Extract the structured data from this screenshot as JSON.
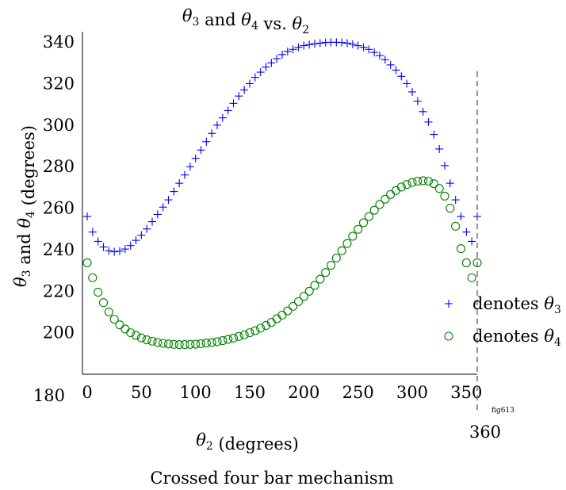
{
  "chart_data": {
    "type": "scatter",
    "title": "θ3 and θ4 vs. θ2",
    "xlabel": "θ2 (degrees)",
    "ylabel": "θ3 and θ4 (degrees)",
    "caption": "Crossed four bar mechanism",
    "figure_tag": "fig613",
    "xlim": [
      0,
      360
    ],
    "ylim": [
      180,
      345
    ],
    "x_ticks": [
      0,
      50,
      100,
      150,
      200,
      250,
      300,
      350
    ],
    "y_ticks": [
      180,
      200,
      220,
      240,
      260,
      280,
      300,
      320,
      340
    ],
    "reference_line": {
      "x": 360,
      "label": "360"
    },
    "legend_position": "lower-right",
    "x": [
      0,
      5,
      10,
      15,
      20,
      25,
      30,
      35,
      40,
      45,
      50,
      55,
      60,
      65,
      70,
      75,
      80,
      85,
      90,
      95,
      100,
      105,
      110,
      115,
      120,
      125,
      130,
      135,
      140,
      145,
      150,
      155,
      160,
      165,
      170,
      175,
      180,
      185,
      190,
      195,
      200,
      205,
      210,
      215,
      220,
      225,
      230,
      235,
      240,
      245,
      250,
      255,
      260,
      265,
      270,
      275,
      280,
      285,
      290,
      295,
      300,
      305,
      310,
      315,
      320,
      325,
      330,
      335,
      340,
      345,
      350,
      355,
      360
    ],
    "series": [
      {
        "name": "denotes θ3",
        "marker": "+",
        "color": "#0000ff",
        "values": [
          256.0,
          248.5,
          244.0,
          241.3,
          239.5,
          239.0,
          239.3,
          240.3,
          242.0,
          244.5,
          247.0,
          250.0,
          253.5,
          257.0,
          260.5,
          264.0,
          268.0,
          272.0,
          276.0,
          280.0,
          284.0,
          288.0,
          292.0,
          296.0,
          300.0,
          303.5,
          307.0,
          310.5,
          314.0,
          317.0,
          320.0,
          323.0,
          325.5,
          328.0,
          330.0,
          332.0,
          334.0,
          335.5,
          336.5,
          337.5,
          338.3,
          338.8,
          339.2,
          339.5,
          339.8,
          339.9,
          339.9,
          339.8,
          339.5,
          339.0,
          338.3,
          337.5,
          336.5,
          335.0,
          333.5,
          331.5,
          329.0,
          326.5,
          323.5,
          320.0,
          316.0,
          311.5,
          306.5,
          301.5,
          295.5,
          288.5,
          280.5,
          272.0,
          264.0,
          256.0,
          248.5,
          244.0,
          256.0
        ]
      },
      {
        "name": "denotes θ4",
        "marker": "o",
        "color": "#008000",
        "values": [
          233.7,
          226.5,
          219.5,
          214.5,
          210.0,
          206.5,
          203.8,
          201.8,
          200.0,
          198.7,
          197.5,
          196.6,
          195.9,
          195.3,
          194.9,
          194.6,
          194.4,
          194.3,
          194.3,
          194.4,
          194.5,
          194.7,
          195.0,
          195.3,
          195.7,
          196.2,
          196.8,
          197.4,
          198.2,
          199.0,
          200.0,
          201.0,
          202.2,
          203.5,
          205.0,
          206.7,
          208.5,
          210.5,
          212.7,
          215.0,
          217.5,
          220.0,
          222.8,
          225.8,
          229.0,
          232.5,
          236.0,
          239.5,
          243.0,
          246.5,
          249.8,
          253.0,
          256.0,
          259.0,
          261.8,
          264.3,
          266.6,
          268.5,
          270.2,
          271.4,
          272.4,
          273.0,
          273.2,
          273.0,
          271.8,
          269.5,
          265.8,
          260.0,
          251.3,
          240.5,
          233.7,
          226.5,
          233.7
        ]
      }
    ]
  }
}
